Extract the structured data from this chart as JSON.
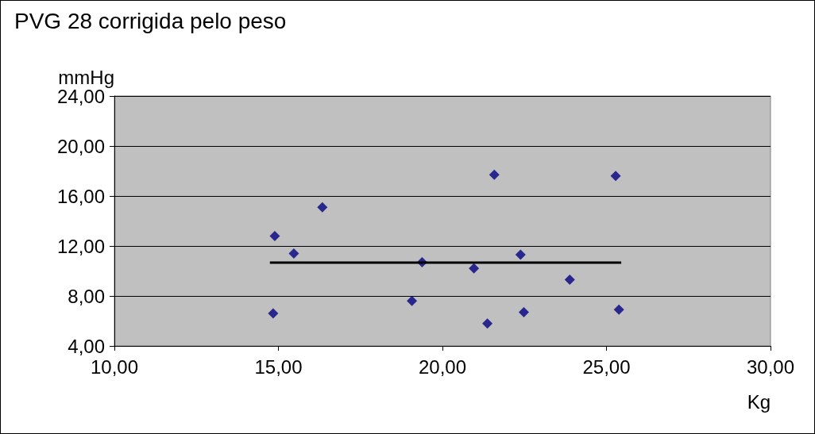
{
  "chart_data": {
    "type": "scatter",
    "title": "PVG 28 corrigida pelo peso",
    "ylabel": "mmHg",
    "xlabel": "Kg",
    "marker": "diamond",
    "grid": "y",
    "xlim": [
      10,
      30
    ],
    "xticks": [
      {
        "value": 10,
        "label": "10,00"
      },
      {
        "value": 15,
        "label": "15,00"
      },
      {
        "value": 20,
        "label": "20,00"
      },
      {
        "value": 25,
        "label": "25,00"
      },
      {
        "value": 30,
        "label": "30,00"
      }
    ],
    "ylim": [
      4,
      24
    ],
    "yticks": [
      {
        "value": 4,
        "label": "4,00"
      },
      {
        "value": 8,
        "label": "8,00"
      },
      {
        "value": 12,
        "label": "12,00"
      },
      {
        "value": 16,
        "label": "16,00"
      },
      {
        "value": 20,
        "label": "20,00"
      },
      {
        "value": 24,
        "label": "24,00"
      }
    ],
    "series": [
      {
        "color": "#000080",
        "x": [
          14.84,
          14.89,
          15.47,
          16.34,
          19.07,
          19.38,
          20.96,
          21.37,
          21.58,
          22.38,
          22.48,
          23.88,
          25.28,
          25.38
        ],
        "values": [
          6.6,
          12.8,
          11.4,
          15.1,
          7.6,
          10.7,
          10.2,
          5.8,
          17.7,
          11.3,
          6.7,
          9.3,
          17.6,
          6.9
        ]
      },
      {
        "type": "line",
        "color": "#000000",
        "marker": "none",
        "x": [
          14.74,
          25.45
        ],
        "values": [
          10.67,
          10.67
        ]
      }
    ]
  }
}
